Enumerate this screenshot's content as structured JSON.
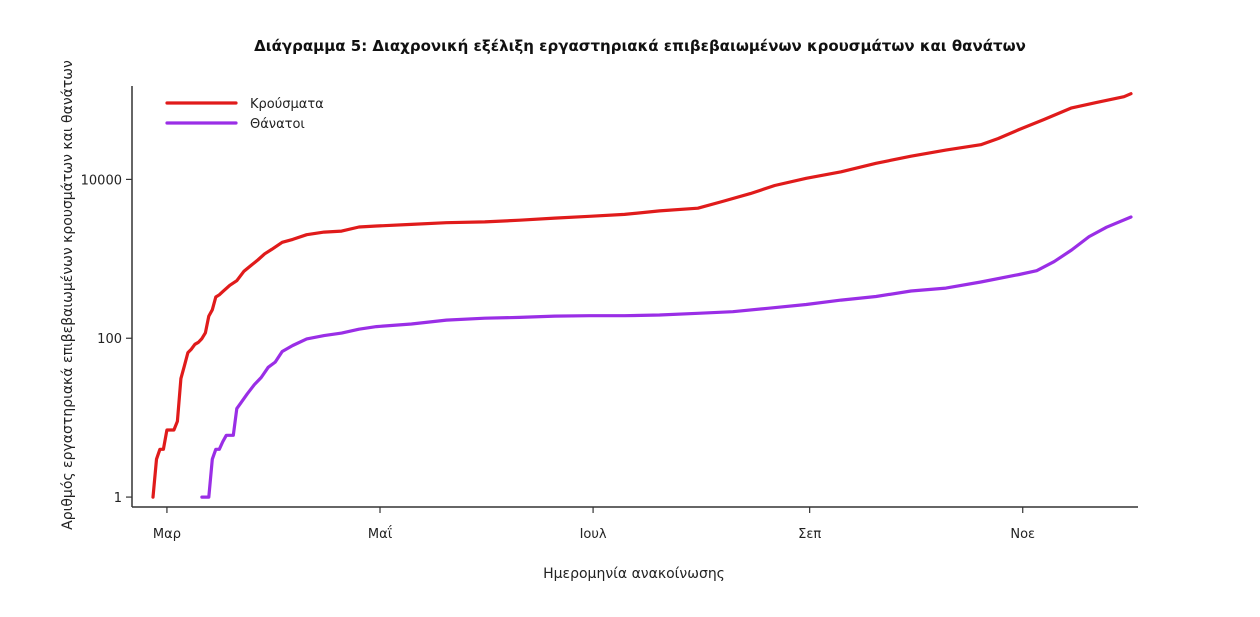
{
  "chart_data": {
    "type": "line",
    "title": "Διάγραμμα 5: Διαχρονική εξέλιξη εργαστηριακά επιβεβαιωμένων κρουσμάτων και θανάτων",
    "xlabel": "Ημερομηνία ανακοίνωσης",
    "ylabel": "Αριθμός εργαστηριακά επιβεβαιωμένων κρουσμάτων και θανάτων",
    "y_scale": "log",
    "ylim": [
      0.75,
      150000
    ],
    "xlim": [
      "2020-02-20",
      "2020-12-04"
    ],
    "y_ticks": [
      {
        "value": 1,
        "label": "1"
      },
      {
        "value": 100,
        "label": "100"
      },
      {
        "value": 10000,
        "label": "10000"
      }
    ],
    "x_ticks": [
      {
        "date": "2020-03-01",
        "label": "Μαρ"
      },
      {
        "date": "2020-05-01",
        "label": "Μαΐ"
      },
      {
        "date": "2020-07-01",
        "label": "Ιουλ"
      },
      {
        "date": "2020-09-01",
        "label": "Σεπ"
      },
      {
        "date": "2020-11-01",
        "label": "Νοε"
      }
    ],
    "legend": {
      "position": "top-left"
    },
    "grid": false,
    "series": [
      {
        "name": "Κρούσματα",
        "color": "#e01b1b",
        "points": [
          [
            "2020-02-26",
            1
          ],
          [
            "2020-02-27",
            3
          ],
          [
            "2020-02-28",
            4
          ],
          [
            "2020-02-29",
            4
          ],
          [
            "2020-03-01",
            7
          ],
          [
            "2020-03-03",
            7
          ],
          [
            "2020-03-04",
            9
          ],
          [
            "2020-03-05",
            31
          ],
          [
            "2020-03-06",
            45
          ],
          [
            "2020-03-07",
            66
          ],
          [
            "2020-03-08",
            73
          ],
          [
            "2020-03-09",
            84
          ],
          [
            "2020-03-10",
            89
          ],
          [
            "2020-03-11",
            99
          ],
          [
            "2020-03-12",
            117
          ],
          [
            "2020-03-13",
            190
          ],
          [
            "2020-03-14",
            228
          ],
          [
            "2020-03-15",
            331
          ],
          [
            "2020-03-16",
            352
          ],
          [
            "2020-03-17",
            387
          ],
          [
            "2020-03-19",
            464
          ],
          [
            "2020-03-21",
            530
          ],
          [
            "2020-03-23",
            695
          ],
          [
            "2020-03-25",
            821
          ],
          [
            "2020-03-27",
            966
          ],
          [
            "2020-03-29",
            1156
          ],
          [
            "2020-03-31",
            1314
          ],
          [
            "2020-04-03",
            1613
          ],
          [
            "2020-04-06",
            1755
          ],
          [
            "2020-04-10",
            2011
          ],
          [
            "2020-04-15",
            2170
          ],
          [
            "2020-04-20",
            2235
          ],
          [
            "2020-04-25",
            2517
          ],
          [
            "2020-04-30",
            2591
          ],
          [
            "2020-05-10",
            2710
          ],
          [
            "2020-05-20",
            2850
          ],
          [
            "2020-05-31",
            2915
          ],
          [
            "2020-06-10",
            3060
          ],
          [
            "2020-06-20",
            3256
          ],
          [
            "2020-06-30",
            3432
          ],
          [
            "2020-07-10",
            3622
          ],
          [
            "2020-07-20",
            4007
          ],
          [
            "2020-07-31",
            4337
          ],
          [
            "2020-08-07",
            5270
          ],
          [
            "2020-08-15",
            6632
          ],
          [
            "2020-08-22",
            8381
          ],
          [
            "2020-08-31",
            10317
          ],
          [
            "2020-09-10",
            12452
          ],
          [
            "2020-09-20",
            15928
          ],
          [
            "2020-09-30",
            19613
          ],
          [
            "2020-10-10",
            23377
          ],
          [
            "2020-10-20",
            27334
          ],
          [
            "2020-10-25",
            32752
          ],
          [
            "2020-10-31",
            42459
          ],
          [
            "2020-11-07",
            56698
          ],
          [
            "2020-11-15",
            79452
          ],
          [
            "2020-11-22",
            93000
          ],
          [
            "2020-11-30",
            110000
          ],
          [
            "2020-12-02",
            120000
          ]
        ]
      },
      {
        "name": "Θάνατοι",
        "color": "#9a2ee6",
        "points": [
          [
            "2020-03-11",
            1
          ],
          [
            "2020-03-12",
            1
          ],
          [
            "2020-03-13",
            1
          ],
          [
            "2020-03-14",
            3
          ],
          [
            "2020-03-15",
            4
          ],
          [
            "2020-03-16",
            4
          ],
          [
            "2020-03-17",
            5
          ],
          [
            "2020-03-18",
            6
          ],
          [
            "2020-03-19",
            6
          ],
          [
            "2020-03-20",
            6
          ],
          [
            "2020-03-21",
            13
          ],
          [
            "2020-03-22",
            15
          ],
          [
            "2020-03-24",
            20
          ],
          [
            "2020-03-26",
            26
          ],
          [
            "2020-03-28",
            32
          ],
          [
            "2020-03-30",
            43
          ],
          [
            "2020-04-01",
            50
          ],
          [
            "2020-04-03",
            68
          ],
          [
            "2020-04-06",
            81
          ],
          [
            "2020-04-10",
            98
          ],
          [
            "2020-04-15",
            108
          ],
          [
            "2020-04-20",
            116
          ],
          [
            "2020-04-25",
            130
          ],
          [
            "2020-04-30",
            140
          ],
          [
            "2020-05-10",
            151
          ],
          [
            "2020-05-20",
            169
          ],
          [
            "2020-05-31",
            179
          ],
          [
            "2020-06-10",
            183
          ],
          [
            "2020-06-20",
            190
          ],
          [
            "2020-06-30",
            192
          ],
          [
            "2020-07-10",
            192
          ],
          [
            "2020-07-20",
            196
          ],
          [
            "2020-07-31",
            206
          ],
          [
            "2020-08-10",
            216
          ],
          [
            "2020-08-20",
            238
          ],
          [
            "2020-08-31",
            266
          ],
          [
            "2020-09-10",
            302
          ],
          [
            "2020-09-20",
            335
          ],
          [
            "2020-09-30",
            393
          ],
          [
            "2020-10-10",
            428
          ],
          [
            "2020-10-20",
            510
          ],
          [
            "2020-10-31",
            634
          ],
          [
            "2020-11-05",
            709
          ],
          [
            "2020-11-10",
            922
          ],
          [
            "2020-11-15",
            1293
          ],
          [
            "2020-11-20",
            1902
          ],
          [
            "2020-11-25",
            2500
          ],
          [
            "2020-12-02",
            3359
          ]
        ]
      }
    ]
  }
}
